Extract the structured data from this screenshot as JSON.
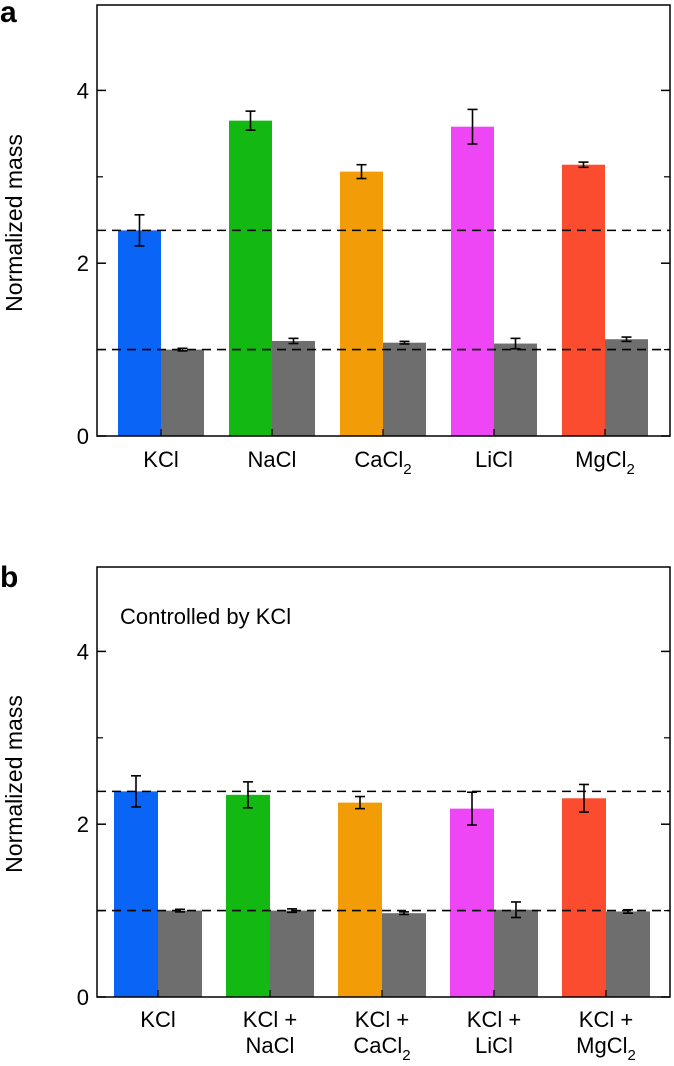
{
  "chart_data": [
    {
      "panel": "a",
      "type": "bar",
      "ylabel": "Normalized mass",
      "ylim": [
        0,
        5
      ],
      "yticks": [
        "0",
        "2",
        "4"
      ],
      "categories": [
        {
          "main": "KCl",
          "sub": ""
        },
        {
          "main": "NaCl",
          "sub": ""
        },
        {
          "main": "CaCl",
          "sub": "2"
        },
        {
          "main": "LiCl",
          "sub": ""
        },
        {
          "main": "MgCl",
          "sub": "2"
        }
      ],
      "series": [
        {
          "colors": [
            "#0a64f5",
            "#13b813",
            "#f29d08",
            "#ee45f5",
            "#fb4c2f"
          ],
          "values": [
            2.38,
            3.65,
            3.06,
            3.58,
            3.14
          ],
          "errors": [
            0.18,
            0.11,
            0.08,
            0.2,
            0.03
          ]
        },
        {
          "color": "#6e6e6e",
          "values": [
            1.0,
            1.1,
            1.08,
            1.07,
            1.12
          ],
          "errors": [
            0.015,
            0.03,
            0.015,
            0.06,
            0.025
          ]
        }
      ],
      "reference_lines": [
        2.38,
        1.0
      ]
    },
    {
      "panel": "b",
      "type": "bar",
      "annotation": "Controlled by KCl",
      "ylabel": "Normalized mass",
      "ylim": [
        0,
        5
      ],
      "yticks": [
        "0",
        "2",
        "4"
      ],
      "categories": [
        {
          "lines": [
            {
              "main": "KCl",
              "sub": ""
            }
          ]
        },
        {
          "lines": [
            {
              "main": "KCl +",
              "sub": ""
            },
            {
              "main": "NaCl",
              "sub": ""
            }
          ]
        },
        {
          "lines": [
            {
              "main": "KCl +",
              "sub": ""
            },
            {
              "main": "CaCl",
              "sub": "2"
            }
          ]
        },
        {
          "lines": [
            {
              "main": "KCl +",
              "sub": ""
            },
            {
              "main": "LiCl",
              "sub": ""
            }
          ]
        },
        {
          "lines": [
            {
              "main": "KCl +",
              "sub": ""
            },
            {
              "main": "MgCl",
              "sub": "2"
            }
          ]
        }
      ],
      "series": [
        {
          "colors": [
            "#0a64f5",
            "#13b813",
            "#f29d08",
            "#ee45f5",
            "#fb4c2f"
          ],
          "values": [
            2.38,
            2.34,
            2.25,
            2.18,
            2.3
          ],
          "errors": [
            0.18,
            0.15,
            0.07,
            0.19,
            0.16
          ]
        },
        {
          "color": "#6e6e6e",
          "values": [
            1.0,
            1.0,
            0.97,
            1.01,
            0.99
          ],
          "errors": [
            0.015,
            0.02,
            0.015,
            0.09,
            0.02
          ]
        }
      ],
      "reference_lines": [
        2.38,
        1.0
      ]
    }
  ]
}
